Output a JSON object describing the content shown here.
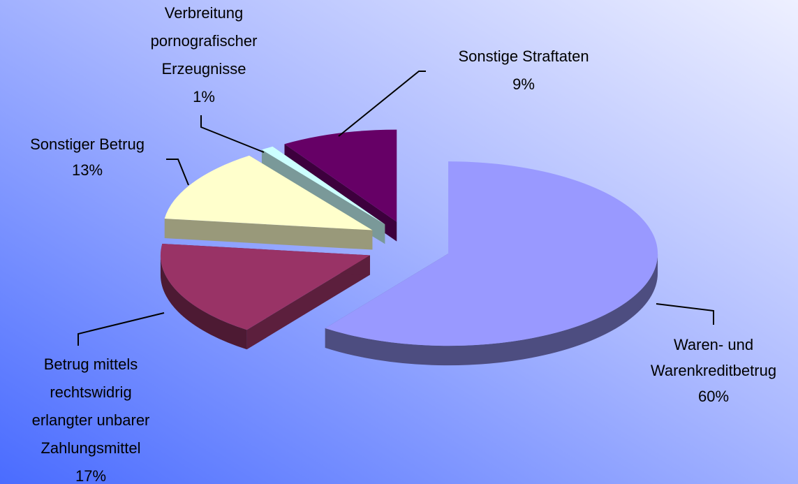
{
  "chart_data": {
    "type": "pie3d",
    "categories": [
      [
        "Waren- und",
        "Warenkreditbetrug"
      ],
      [
        "Betrug mittels",
        "rechtswidrig",
        "erlangter unbarer",
        "Zahlungsmittel"
      ],
      [
        "Sonstiger Betrug"
      ],
      [
        "Verbreitung",
        "pornografischer",
        "Erzeugnisse"
      ],
      [
        "Sonstige Straftaten"
      ]
    ],
    "values": [
      60,
      17,
      13,
      1,
      9
    ],
    "value_labels": [
      "60%",
      "17%",
      "13%",
      "1%",
      "9%"
    ],
    "colors": [
      "#9999ff",
      "#993366",
      "#ffffcc",
      "#ccffff",
      "#660066"
    ]
  }
}
